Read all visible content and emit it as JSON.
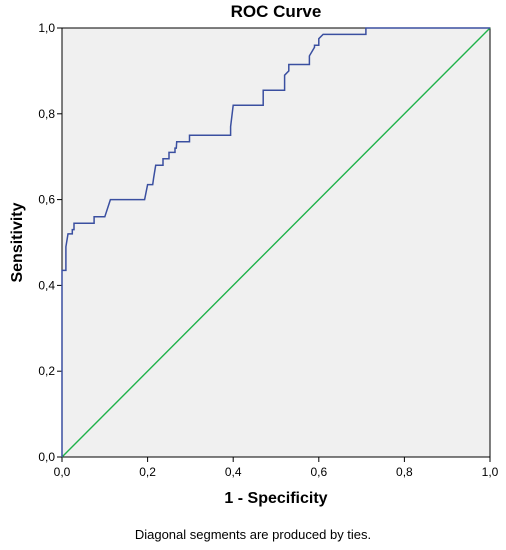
{
  "chart_data": {
    "type": "line",
    "title": "ROC Curve",
    "xlabel": "1 - Specificity",
    "ylabel": "Sensitivity",
    "footnote": "Diagonal segments are produced by ties.",
    "xlim": [
      0,
      1
    ],
    "ylim": [
      0,
      1
    ],
    "xticks": [
      "0,0",
      "0,2",
      "0,4",
      "0,6",
      "0,8",
      "1,0"
    ],
    "yticks": [
      "0,0",
      "0,2",
      "0,4",
      "0,6",
      "0,8",
      "1,0"
    ],
    "grid": false,
    "series": [
      {
        "type": "step",
        "color": "#3a4fa0",
        "points": [
          [
            0.0,
            0.0
          ],
          [
            0.0,
            0.435
          ],
          [
            0.009,
            0.435
          ],
          [
            0.009,
            0.49
          ],
          [
            0.014,
            0.52
          ],
          [
            0.024,
            0.52
          ],
          [
            0.024,
            0.53
          ],
          [
            0.028,
            0.53
          ],
          [
            0.028,
            0.545
          ],
          [
            0.075,
            0.545
          ],
          [
            0.075,
            0.56
          ],
          [
            0.1,
            0.56
          ],
          [
            0.113,
            0.6
          ],
          [
            0.193,
            0.6
          ],
          [
            0.2,
            0.635
          ],
          [
            0.212,
            0.635
          ],
          [
            0.214,
            0.65
          ],
          [
            0.219,
            0.68
          ],
          [
            0.236,
            0.68
          ],
          [
            0.236,
            0.695
          ],
          [
            0.25,
            0.695
          ],
          [
            0.25,
            0.71
          ],
          [
            0.264,
            0.71
          ],
          [
            0.264,
            0.72
          ],
          [
            0.267,
            0.72
          ],
          [
            0.268,
            0.735
          ],
          [
            0.298,
            0.735
          ],
          [
            0.298,
            0.75
          ],
          [
            0.394,
            0.75
          ],
          [
            0.394,
            0.77
          ],
          [
            0.4,
            0.82
          ],
          [
            0.47,
            0.82
          ],
          [
            0.47,
            0.855
          ],
          [
            0.52,
            0.855
          ],
          [
            0.52,
            0.89
          ],
          [
            0.53,
            0.9
          ],
          [
            0.53,
            0.915
          ],
          [
            0.578,
            0.915
          ],
          [
            0.578,
            0.935
          ],
          [
            0.59,
            0.955
          ],
          [
            0.59,
            0.96
          ],
          [
            0.6,
            0.96
          ],
          [
            0.6,
            0.975
          ],
          [
            0.61,
            0.985
          ],
          [
            0.71,
            0.985
          ],
          [
            0.71,
            1.0
          ],
          [
            1.0,
            1.0
          ]
        ]
      },
      {
        "type": "line",
        "color": "#1fb24a",
        "points": [
          [
            0,
            0
          ],
          [
            1,
            1
          ]
        ]
      }
    ]
  }
}
